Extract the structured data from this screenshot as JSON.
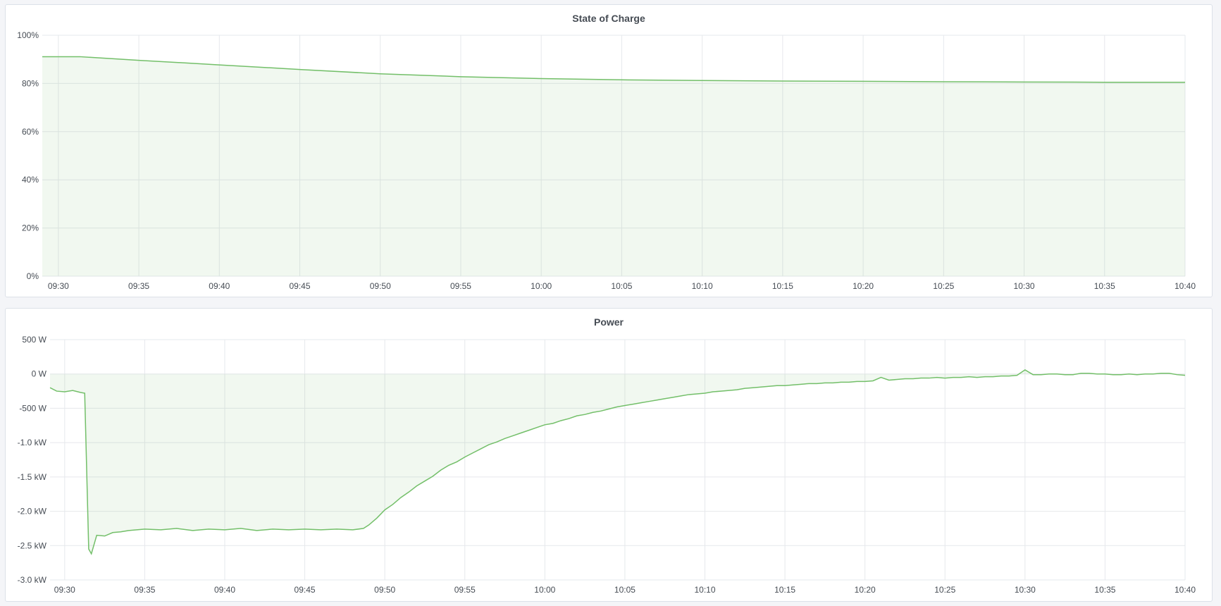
{
  "colors": {
    "line": "#73bf69",
    "fill": "#73bf69",
    "grid": "#e6e8ec",
    "background": "#f4f5f8"
  },
  "chart_data": [
    {
      "type": "area",
      "title": "State of Charge",
      "xlim": [
        "09:29:00",
        "10:40:00"
      ],
      "ylim": [
        0,
        100
      ],
      "x_ticks": [
        "09:30",
        "09:35",
        "09:40",
        "09:45",
        "09:50",
        "09:55",
        "10:00",
        "10:05",
        "10:10",
        "10:15",
        "10:20",
        "10:25",
        "10:30",
        "10:35",
        "10:40"
      ],
      "y_ticks": [
        0,
        20,
        40,
        60,
        80,
        100
      ],
      "y_tick_labels": [
        "0%",
        "20%",
        "40%",
        "60%",
        "80%",
        "100%"
      ],
      "grid": true,
      "x": [
        "09:29:00",
        "09:31:20",
        "09:35:00",
        "09:40:00",
        "09:45:00",
        "09:50:00",
        "09:55:00",
        "10:00:00",
        "10:05:00",
        "10:10:00",
        "10:15:00",
        "10:20:00",
        "10:25:00",
        "10:30:00",
        "10:35:00",
        "10:40:00"
      ],
      "values": [
        91.1,
        91.1,
        89.6,
        87.7,
        85.8,
        84.0,
        82.8,
        82.0,
        81.5,
        81.2,
        81.0,
        80.9,
        80.7,
        80.6,
        80.5,
        80.5
      ]
    },
    {
      "type": "area",
      "title": "Power",
      "xlim": [
        "09:29:05",
        "10:40:00"
      ],
      "ylim": [
        -3000,
        500
      ],
      "x_ticks": [
        "09:30",
        "09:35",
        "09:40",
        "09:45",
        "09:50",
        "09:55",
        "10:00",
        "10:05",
        "10:10",
        "10:15",
        "10:20",
        "10:25",
        "10:30",
        "10:35",
        "10:40"
      ],
      "y_ticks": [
        500,
        0,
        -500,
        -1000,
        -1500,
        -2000,
        -2500,
        -3000
      ],
      "y_tick_labels": [
        "500 W",
        "0 W",
        "-500 W",
        "-1.0 kW",
        "-1.5 kW",
        "-2.0 kW",
        "-2.5 kW",
        "-3.0 kW"
      ],
      "grid": true,
      "x": [
        "09:29:05",
        "09:29:30",
        "09:30:00",
        "09:30:30",
        "09:31:00",
        "09:31:15",
        "09:31:30",
        "09:31:40",
        "09:32:00",
        "09:32:30",
        "09:33:00",
        "09:33:30",
        "09:34:00",
        "09:35:00",
        "09:36:00",
        "09:37:00",
        "09:38:00",
        "09:39:00",
        "09:40:00",
        "09:41:00",
        "09:42:00",
        "09:43:00",
        "09:44:00",
        "09:45:00",
        "09:46:00",
        "09:47:00",
        "09:48:00",
        "09:48:40",
        "09:49:00",
        "09:49:30",
        "09:50:00",
        "09:50:30",
        "09:51:00",
        "09:51:30",
        "09:52:00",
        "09:52:30",
        "09:53:00",
        "09:53:30",
        "09:54:00",
        "09:54:30",
        "09:55:00",
        "09:55:30",
        "09:56:00",
        "09:56:30",
        "09:57:00",
        "09:57:30",
        "09:58:00",
        "09:58:30",
        "09:59:00",
        "09:59:30",
        "10:00:00",
        "10:00:30",
        "10:01:00",
        "10:01:30",
        "10:02:00",
        "10:02:30",
        "10:03:00",
        "10:03:30",
        "10:04:00",
        "10:04:30",
        "10:05:00",
        "10:05:30",
        "10:06:00",
        "10:06:30",
        "10:07:00",
        "10:07:30",
        "10:08:00",
        "10:08:30",
        "10:09:00",
        "10:09:30",
        "10:10:00",
        "10:10:30",
        "10:11:00",
        "10:11:30",
        "10:12:00",
        "10:12:30",
        "10:13:00",
        "10:13:30",
        "10:14:00",
        "10:14:30",
        "10:15:00",
        "10:15:30",
        "10:16:00",
        "10:16:30",
        "10:17:00",
        "10:17:30",
        "10:18:00",
        "10:18:30",
        "10:19:00",
        "10:19:30",
        "10:20:00",
        "10:20:30",
        "10:21:00",
        "10:21:30",
        "10:22:00",
        "10:22:30",
        "10:23:00",
        "10:23:30",
        "10:24:00",
        "10:24:30",
        "10:25:00",
        "10:25:30",
        "10:26:00",
        "10:26:30",
        "10:27:00",
        "10:27:30",
        "10:28:00",
        "10:28:30",
        "10:29:00",
        "10:29:30",
        "10:30:00",
        "10:30:30",
        "10:31:00",
        "10:31:30",
        "10:32:00",
        "10:32:30",
        "10:33:00",
        "10:33:30",
        "10:34:00",
        "10:34:30",
        "10:35:00",
        "10:35:30",
        "10:36:00",
        "10:36:30",
        "10:37:00",
        "10:37:30",
        "10:38:00",
        "10:38:30",
        "10:39:00",
        "10:39:30",
        "10:40:00"
      ],
      "values": [
        -200,
        -250,
        -260,
        -240,
        -270,
        -280,
        -2550,
        -2620,
        -2350,
        -2360,
        -2310,
        -2300,
        -2280,
        -2260,
        -2270,
        -2250,
        -2280,
        -2260,
        -2270,
        -2250,
        -2280,
        -2260,
        -2270,
        -2260,
        -2270,
        -2260,
        -2270,
        -2250,
        -2200,
        -2100,
        -1980,
        -1900,
        -1800,
        -1720,
        -1630,
        -1560,
        -1490,
        -1400,
        -1330,
        -1280,
        -1210,
        -1150,
        -1090,
        -1030,
        -990,
        -940,
        -900,
        -860,
        -820,
        -780,
        -740,
        -720,
        -680,
        -650,
        -610,
        -590,
        -560,
        -540,
        -510,
        -480,
        -460,
        -440,
        -420,
        -400,
        -380,
        -360,
        -340,
        -320,
        -300,
        -290,
        -280,
        -260,
        -250,
        -240,
        -230,
        -210,
        -200,
        -190,
        -180,
        -170,
        -170,
        -160,
        -150,
        -140,
        -140,
        -130,
        -130,
        -120,
        -120,
        -110,
        -110,
        -100,
        -50,
        -90,
        -80,
        -70,
        -70,
        -60,
        -60,
        -50,
        -60,
        -50,
        -50,
        -40,
        -50,
        -40,
        -40,
        -30,
        -30,
        -20,
        60,
        -10,
        -10,
        0,
        0,
        -10,
        -10,
        10,
        10,
        0,
        0,
        -10,
        -10,
        0,
        -10,
        0,
        0,
        10,
        10,
        -10,
        -20
      ]
    }
  ]
}
